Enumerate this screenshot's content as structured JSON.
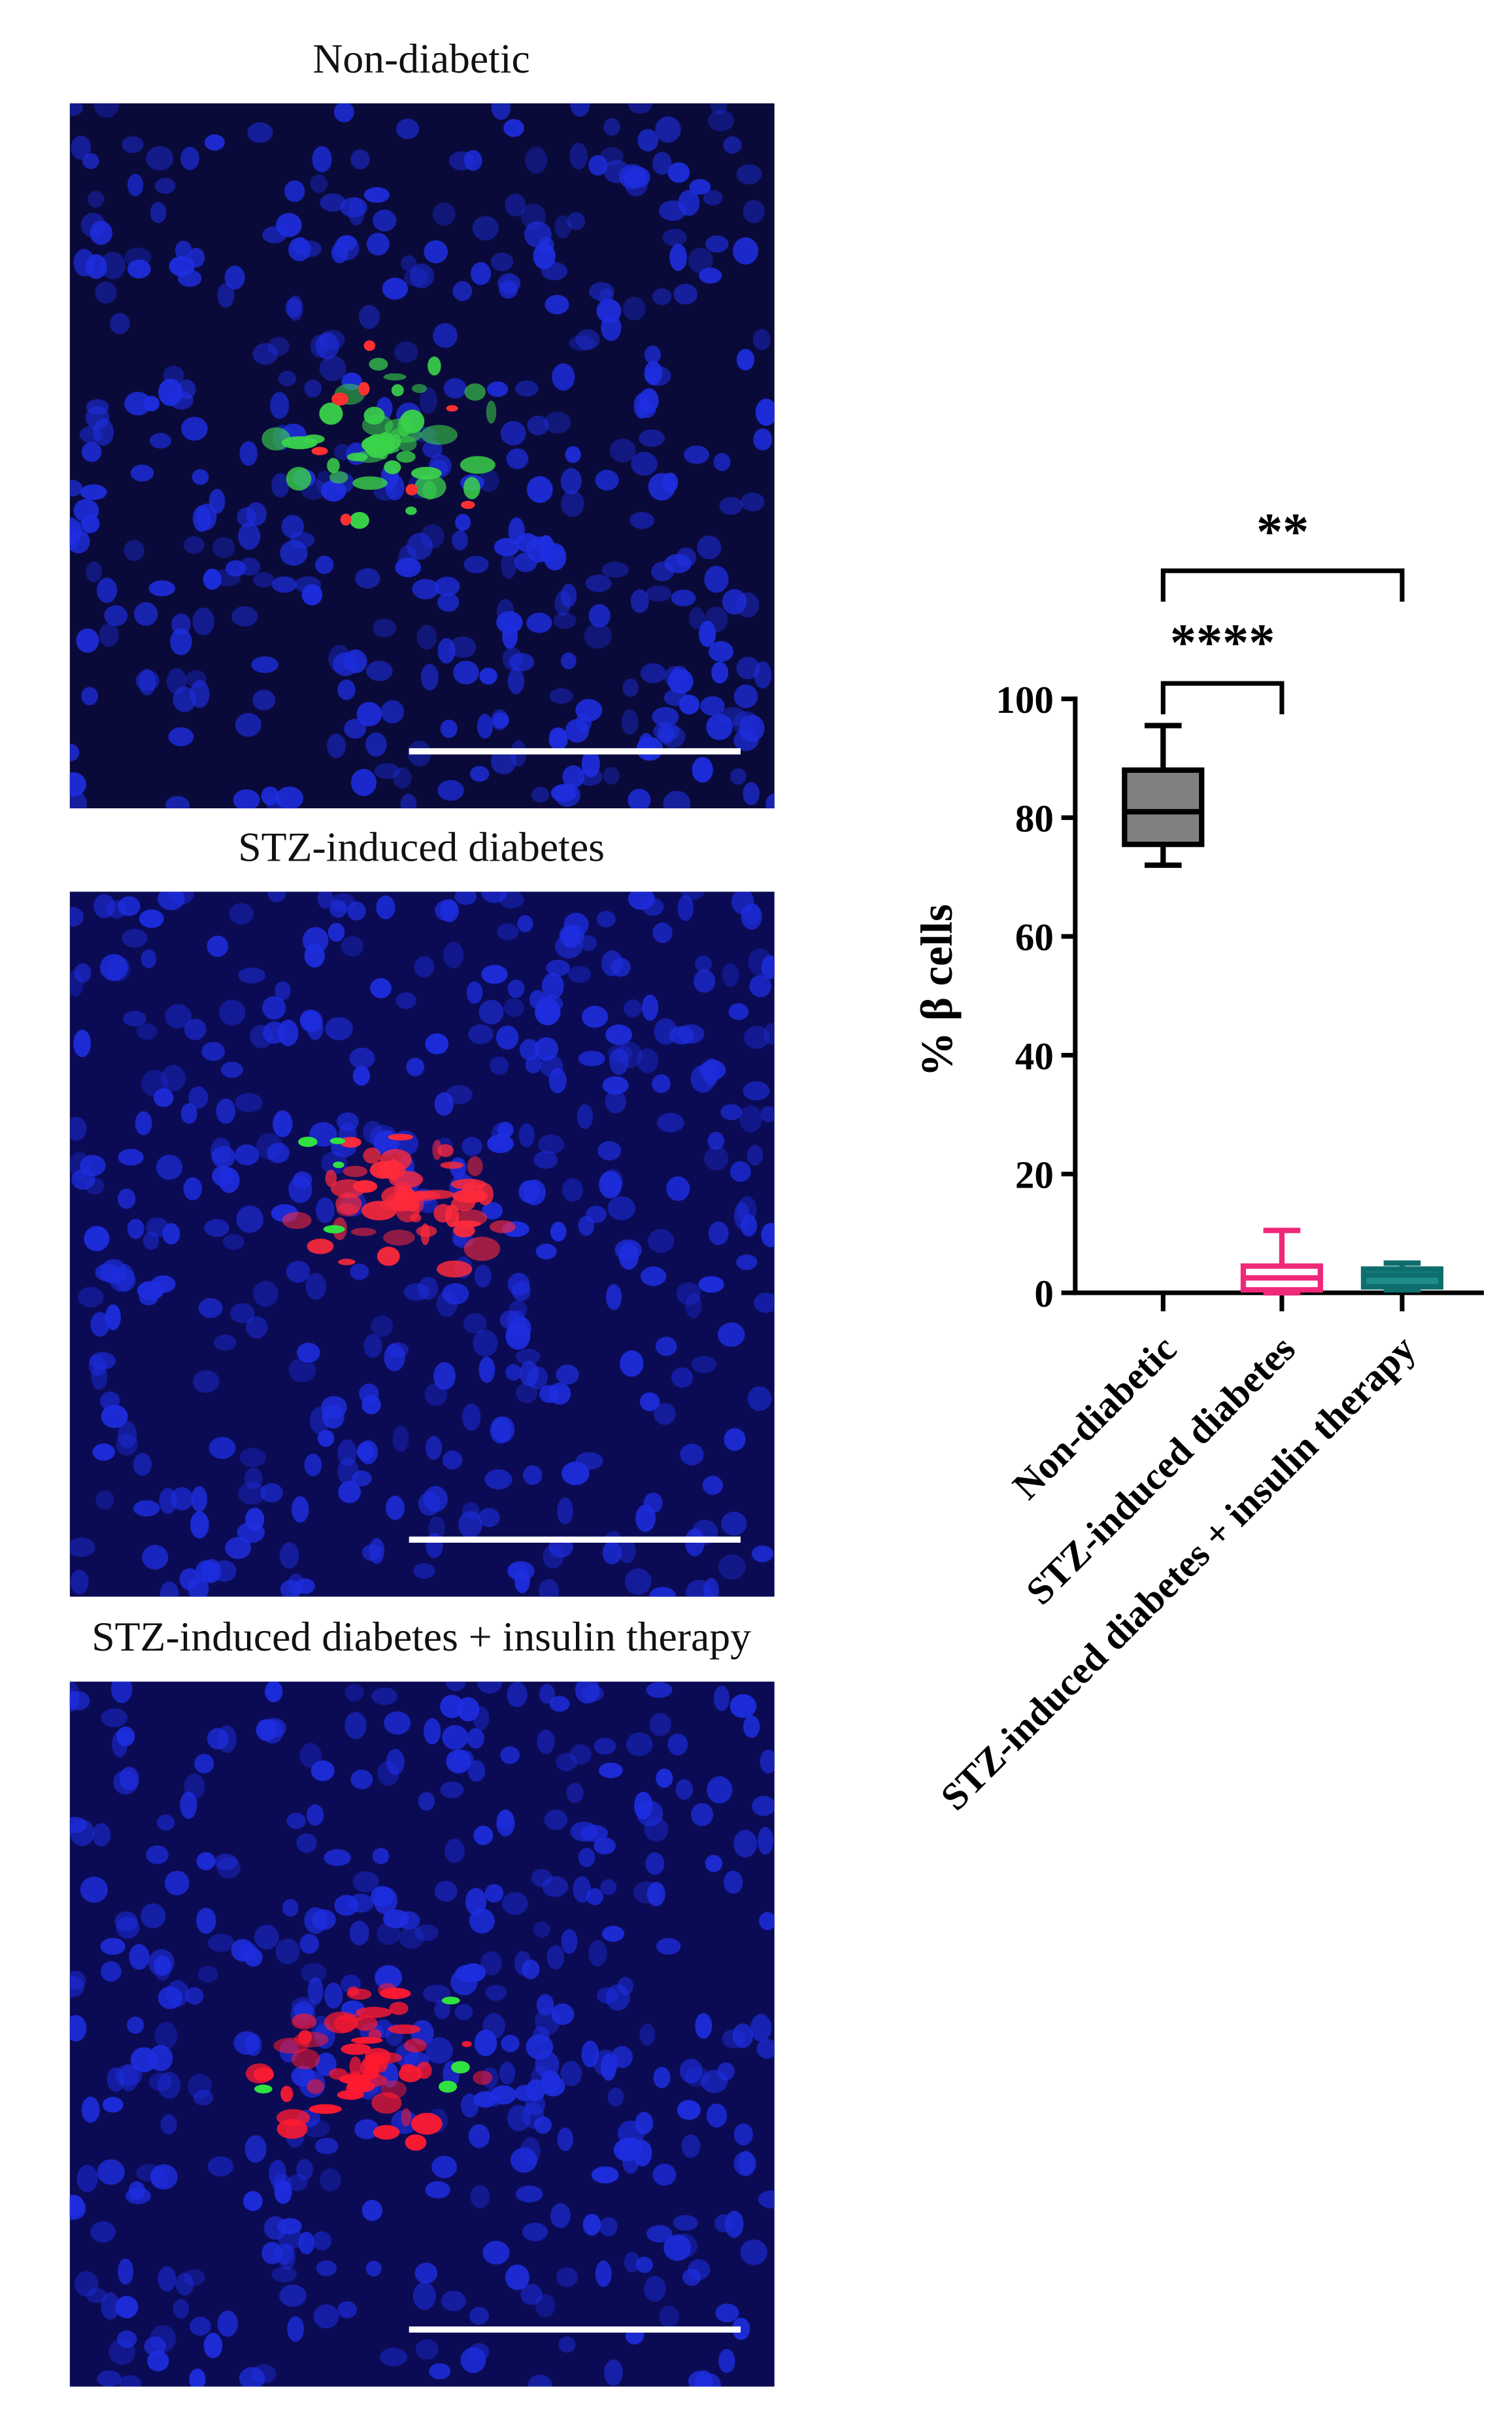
{
  "panels": [
    {
      "title": "Non-diabetic"
    },
    {
      "title": "STZ-induced diabetes"
    },
    {
      "title": "STZ-induced diabetes + insulin therapy"
    }
  ],
  "chart_data": {
    "type": "box",
    "y_label": "% β cells",
    "categories": [
      "Non-diabetic",
      "STZ-induced diabetes",
      "STZ-induced diabetes + insulin therapy"
    ],
    "boxes": [
      {
        "color": "#808080",
        "edge": "#000000",
        "min": 72,
        "q1": 75.5,
        "median": 81,
        "q3": 88,
        "max": 95.5
      },
      {
        "color": "#ffffff",
        "edge": "#f0287a",
        "min": 0,
        "q1": 0.5,
        "median": 2.5,
        "q3": 4.5,
        "max": 10.5
      },
      {
        "color": "#1f8c8c",
        "edge": "#0e6e6e",
        "min": 0.5,
        "q1": 1,
        "median": 3,
        "q3": 4,
        "max": 5
      }
    ],
    "annotations": [
      "****",
      "**"
    ],
    "ylim": [
      0,
      100
    ],
    "yticks": [
      0,
      20,
      40,
      60,
      80,
      100
    ]
  }
}
